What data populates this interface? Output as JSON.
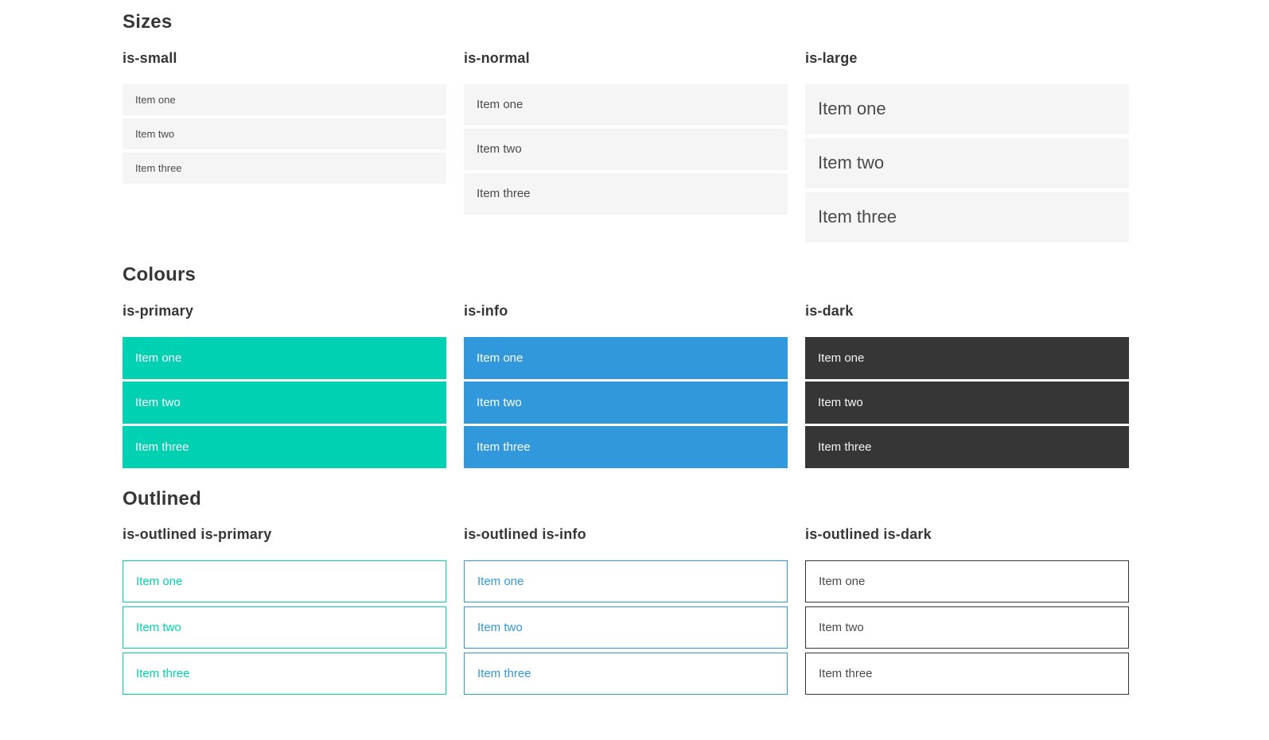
{
  "colors": {
    "primary": "#00d1b2",
    "info": "#3298dc",
    "dark": "#363636",
    "light_item_bg": "#f5f5f5",
    "text": "#4a4a4a",
    "heading": "#363636",
    "white_text": "#ffffff"
  },
  "sections": [
    {
      "title": "Sizes",
      "groups": [
        {
          "label": "is-small",
          "variant": "small",
          "items": [
            "Item one",
            "Item two",
            "Item three"
          ]
        },
        {
          "label": "is-normal",
          "variant": "normal",
          "items": [
            "Item one",
            "Item two",
            "Item three"
          ]
        },
        {
          "label": "is-large",
          "variant": "large",
          "items": [
            "Item one",
            "Item two",
            "Item three"
          ]
        }
      ]
    },
    {
      "title": "Colours",
      "groups": [
        {
          "label": "is-primary",
          "variant": "primary",
          "items": [
            "Item one",
            "Item two",
            "Item three"
          ]
        },
        {
          "label": "is-info",
          "variant": "info",
          "items": [
            "Item one",
            "Item two",
            "Item three"
          ]
        },
        {
          "label": "is-dark",
          "variant": "dark",
          "items": [
            "Item one",
            "Item two",
            "Item three"
          ]
        }
      ]
    },
    {
      "title": "Outlined",
      "groups": [
        {
          "label": "is-outlined is-primary",
          "variant": "outlined-primary",
          "items": [
            "Item one",
            "Item two",
            "Item three"
          ]
        },
        {
          "label": "is-outlined is-info",
          "variant": "outlined-info",
          "items": [
            "Item one",
            "Item two",
            "Item three"
          ]
        },
        {
          "label": "is-outlined is-dark",
          "variant": "outlined-dark",
          "items": [
            "Item one",
            "Item two",
            "Item three"
          ]
        }
      ]
    }
  ]
}
